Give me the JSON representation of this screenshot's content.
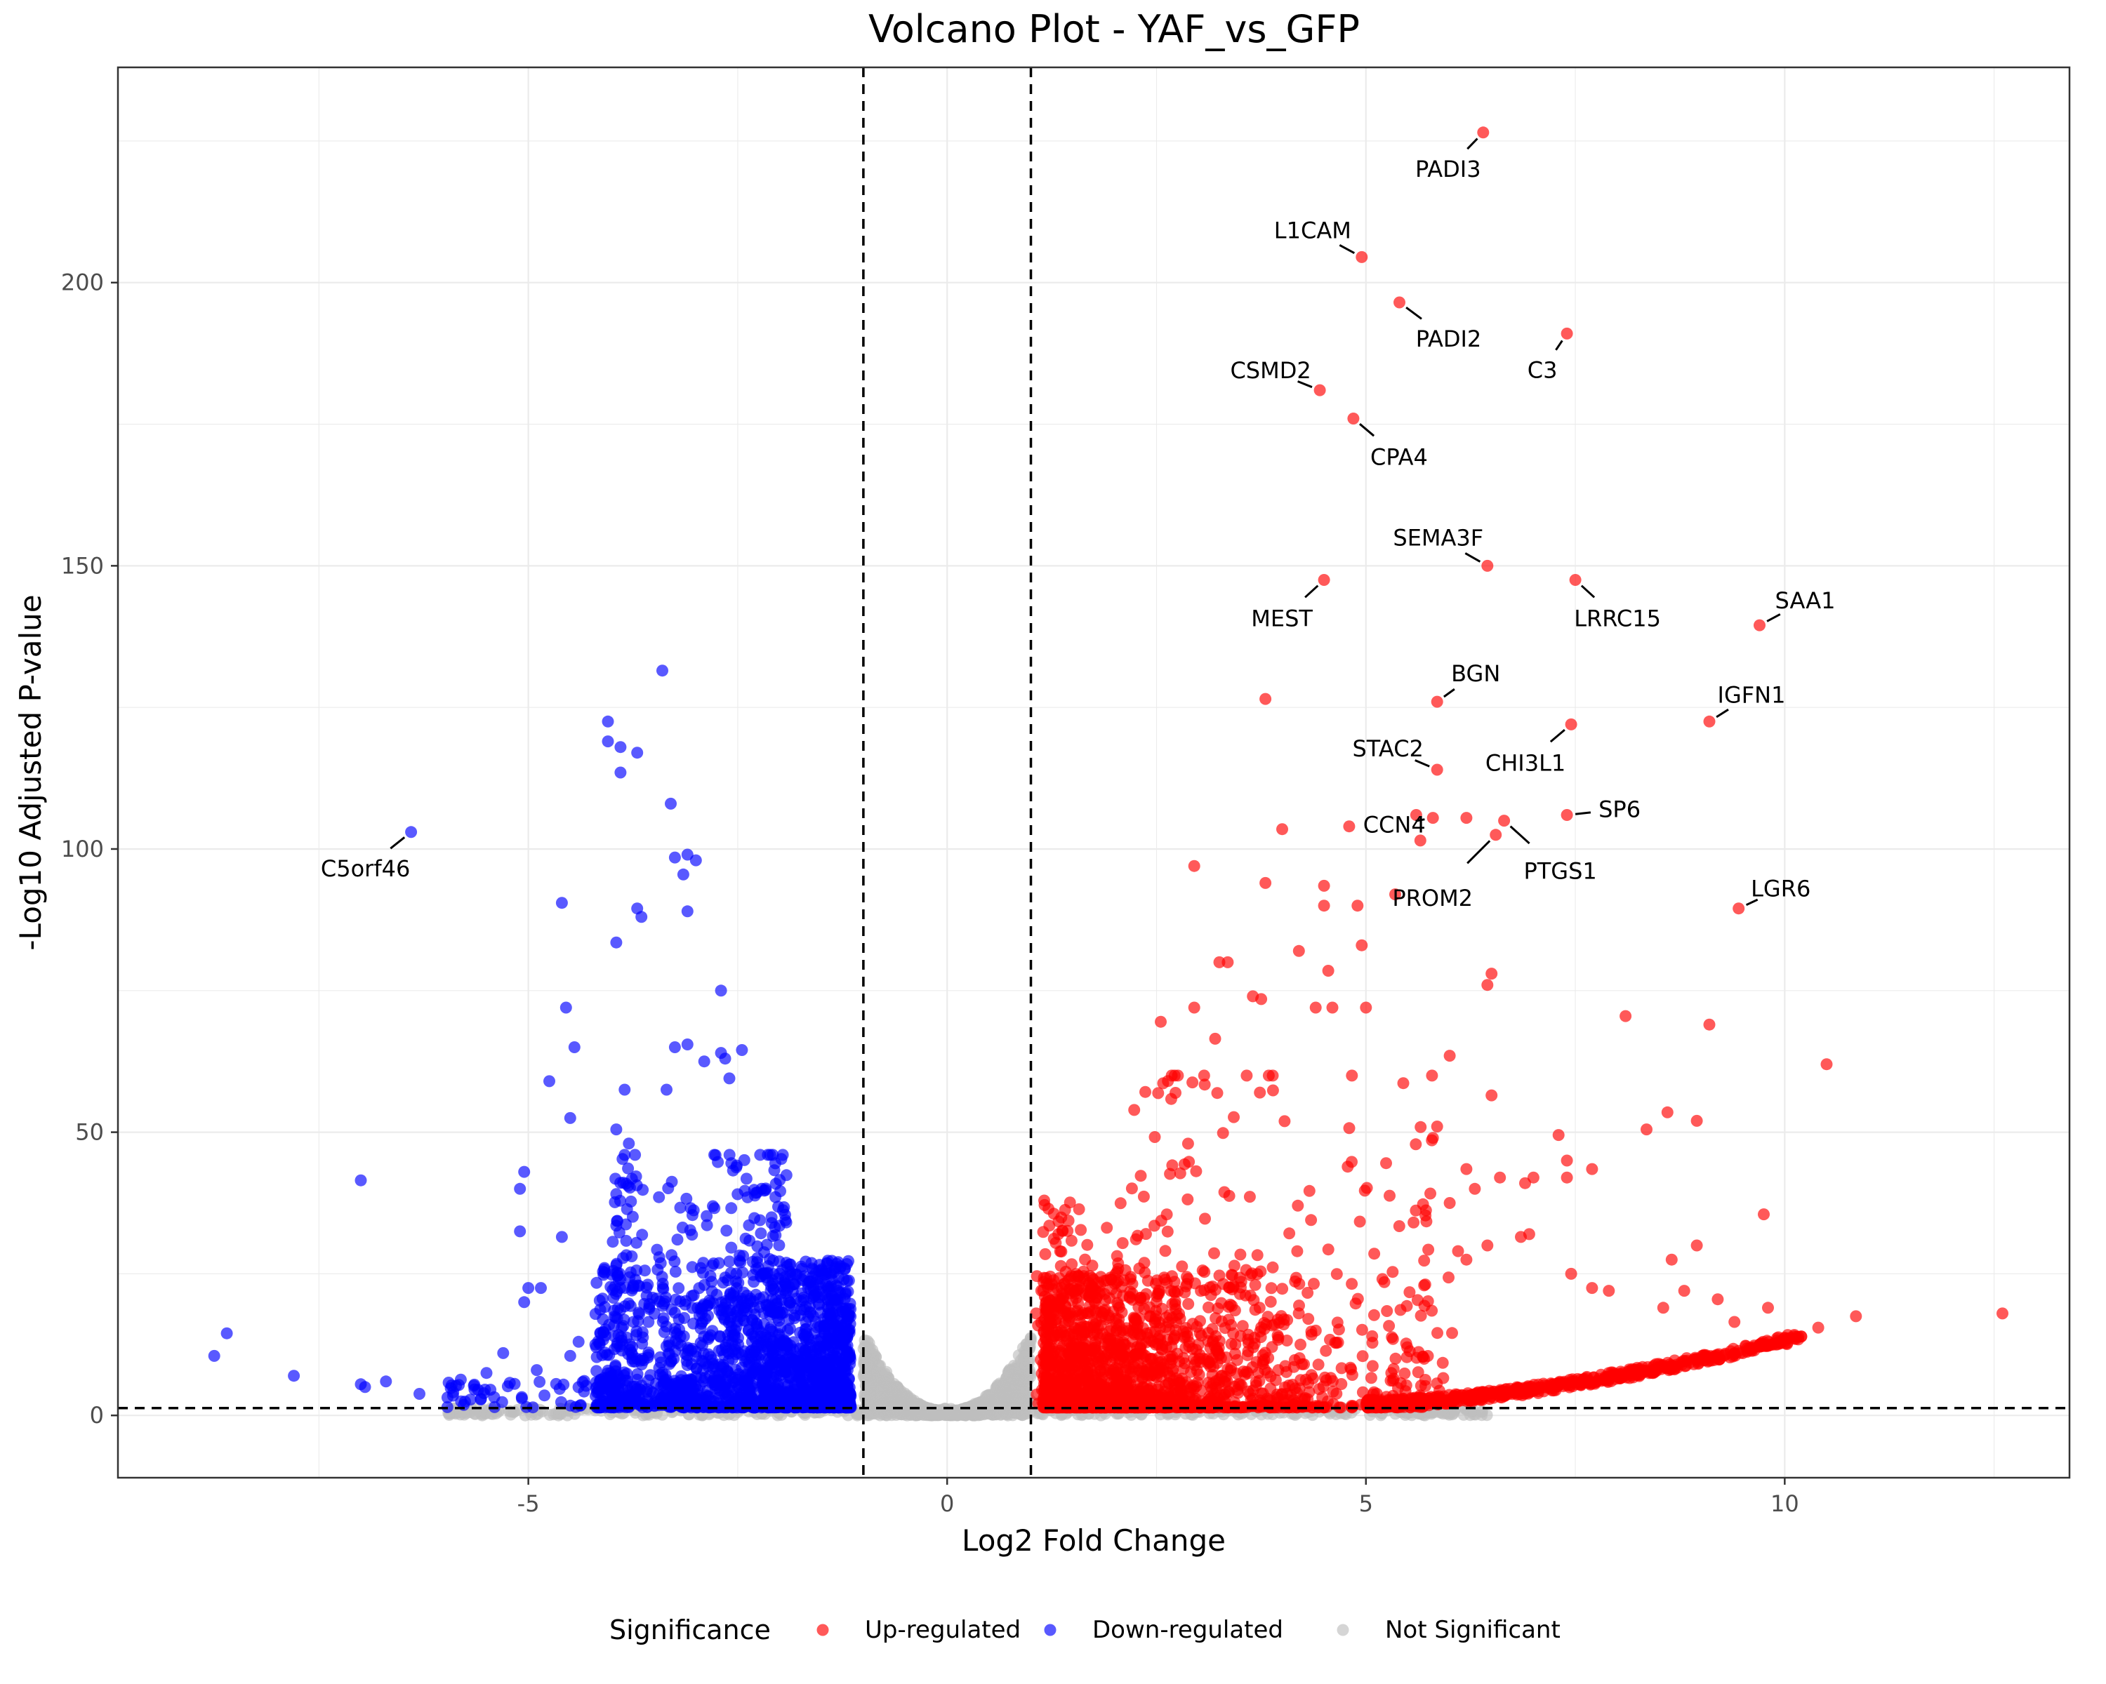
{
  "chart_data": {
    "type": "scatter",
    "title": "Volcano Plot - YAF_vs_GFP",
    "xlabel": "Log2 Fold Change",
    "ylabel": "-Log10 Adjusted P-value",
    "xlim": [
      -9.9,
      13.4
    ],
    "ylim": [
      -11,
      238
    ],
    "x_ticks": [
      -5,
      0,
      5,
      10
    ],
    "x_tick_labels": [
      "-5",
      "0",
      "5",
      "10"
    ],
    "y_ticks": [
      0,
      50,
      100,
      150,
      200
    ],
    "y_tick_labels": [
      "0",
      "50",
      "100",
      "150",
      "200"
    ],
    "grid": true,
    "thresholds": {
      "log2fc": [
        -1,
        1
      ],
      "neg_log10_padj": 1.3
    },
    "legend": {
      "title": "Significance",
      "position": "bottom",
      "entries": [
        {
          "label": "Up-regulated",
          "color": "#ff0000"
        },
        {
          "label": "Down-regulated",
          "color": "#0000ff"
        },
        {
          "label": "Not Significant",
          "color": "#bebebe"
        }
      ]
    },
    "labeled_genes": [
      {
        "label": "PADI3",
        "x": 6.4,
        "y": 226.5,
        "dir": "up"
      },
      {
        "label": "L1CAM",
        "x": 4.95,
        "y": 204.5,
        "dir": "up"
      },
      {
        "label": "PADI2",
        "x": 5.4,
        "y": 196.5,
        "dir": "up"
      },
      {
        "label": "C3",
        "x": 7.4,
        "y": 191,
        "dir": "up"
      },
      {
        "label": "CSMD2",
        "x": 4.45,
        "y": 181,
        "dir": "up"
      },
      {
        "label": "CPA4",
        "x": 4.85,
        "y": 176,
        "dir": "up"
      },
      {
        "label": "SEMA3F",
        "x": 6.45,
        "y": 150,
        "dir": "up"
      },
      {
        "label": "MEST",
        "x": 4.5,
        "y": 147.5,
        "dir": "up"
      },
      {
        "label": "LRRC15",
        "x": 7.5,
        "y": 147.5,
        "dir": "up"
      },
      {
        "label": "SAA1",
        "x": 9.7,
        "y": 139.5,
        "dir": "up"
      },
      {
        "label": "BGN",
        "x": 5.85,
        "y": 126,
        "dir": "up"
      },
      {
        "label": "IGFN1",
        "x": 9.1,
        "y": 122.5,
        "dir": "up"
      },
      {
        "label": "CHI3L1",
        "x": 7.45,
        "y": 122,
        "dir": "up"
      },
      {
        "label": "STAC2",
        "x": 5.85,
        "y": 114,
        "dir": "up"
      },
      {
        "label": "SP6",
        "x": 7.4,
        "y": 106,
        "dir": "up"
      },
      {
        "label": "PTGS1",
        "x": 6.65,
        "y": 105,
        "dir": "up"
      },
      {
        "label": "CCN4",
        "x": 5.8,
        "y": 105.5,
        "dir": "up"
      },
      {
        "label": "PROM2",
        "x": 6.55,
        "y": 102.5,
        "dir": "up"
      },
      {
        "label": "LGR6",
        "x": 9.45,
        "y": 89.5,
        "dir": "up"
      },
      {
        "label": "C5orf46",
        "x": -6.4,
        "y": 103,
        "dir": "down"
      }
    ],
    "highlighted_up": [
      [
        3.8,
        126.5
      ],
      [
        4.0,
        103.5
      ],
      [
        4.8,
        104.0
      ],
      [
        5.6,
        106.0
      ],
      [
        5.65,
        101.5
      ],
      [
        6.2,
        105.5
      ],
      [
        2.95,
        97.0
      ],
      [
        3.8,
        94.0
      ],
      [
        4.5,
        93.5
      ],
      [
        4.5,
        90.0
      ],
      [
        4.9,
        90.0
      ],
      [
        5.35,
        92.0
      ],
      [
        4.95,
        83.0
      ],
      [
        4.2,
        82.0
      ],
      [
        4.55,
        78.5
      ],
      [
        3.35,
        80.0
      ],
      [
        3.25,
        80.0
      ],
      [
        3.65,
        74.0
      ],
      [
        3.75,
        73.5
      ],
      [
        2.95,
        72.0
      ],
      [
        2.55,
        69.5
      ],
      [
        3.2,
        66.5
      ],
      [
        4.4,
        72.0
      ],
      [
        4.6,
        72.0
      ],
      [
        5.0,
        72.0
      ],
      [
        6.45,
        76.0
      ],
      [
        6.5,
        78.0
      ],
      [
        6.0,
        63.5
      ],
      [
        6.5,
        56.5
      ],
      [
        5.85,
        51.0
      ],
      [
        5.8,
        49.0
      ],
      [
        7.3,
        49.5
      ],
      [
        7.4,
        45.0
      ],
      [
        7.7,
        43.5
      ],
      [
        7.4,
        42.0
      ],
      [
        6.6,
        42.0
      ],
      [
        6.9,
        41.0
      ],
      [
        7.0,
        42.0
      ],
      [
        6.2,
        43.5
      ],
      [
        6.3,
        40.0
      ],
      [
        8.1,
        70.5
      ],
      [
        9.1,
        69.0
      ],
      [
        10.5,
        62.0
      ],
      [
        8.6,
        53.5
      ],
      [
        8.95,
        52.0
      ],
      [
        8.35,
        50.5
      ],
      [
        9.75,
        35.5
      ],
      [
        7.45,
        25.0
      ],
      [
        7.7,
        22.5
      ],
      [
        7.9,
        22.0
      ],
      [
        8.95,
        30.0
      ],
      [
        8.65,
        27.5
      ],
      [
        8.8,
        22.0
      ],
      [
        8.55,
        19.0
      ],
      [
        9.2,
        20.5
      ],
      [
        9.8,
        19.0
      ],
      [
        12.6,
        18.0
      ],
      [
        10.85,
        17.5
      ],
      [
        10.4,
        15.5
      ],
      [
        9.4,
        16.5
      ],
      [
        6.95,
        32.0
      ],
      [
        6.85,
        31.5
      ],
      [
        6.1,
        29.0
      ],
      [
        6.2,
        27.5
      ],
      [
        6.45,
        30.0
      ],
      [
        6.0,
        37.5
      ]
    ],
    "highlighted_down": [
      [
        -3.4,
        131.5
      ],
      [
        -4.05,
        122.5
      ],
      [
        -4.05,
        119.0
      ],
      [
        -3.9,
        118.0
      ],
      [
        -3.7,
        117.0
      ],
      [
        -3.9,
        113.5
      ],
      [
        -3.3,
        108.0
      ],
      [
        -3.1,
        99.0
      ],
      [
        -3.0,
        98.0
      ],
      [
        -3.25,
        98.5
      ],
      [
        -3.15,
        95.5
      ],
      [
        -4.6,
        90.5
      ],
      [
        -3.7,
        89.5
      ],
      [
        -3.65,
        88.0
      ],
      [
        -3.1,
        89.0
      ],
      [
        -3.95,
        83.5
      ],
      [
        -2.7,
        75.0
      ],
      [
        -4.55,
        72.0
      ],
      [
        -4.45,
        65.0
      ],
      [
        -3.25,
        65.0
      ],
      [
        -3.1,
        65.5
      ],
      [
        -2.9,
        62.5
      ],
      [
        -2.7,
        64.0
      ],
      [
        -2.45,
        64.5
      ],
      [
        -2.65,
        63.0
      ],
      [
        -2.6,
        59.5
      ],
      [
        -3.35,
        57.5
      ],
      [
        -3.85,
        57.5
      ],
      [
        -4.75,
        59.0
      ],
      [
        -4.5,
        52.5
      ],
      [
        -3.95,
        50.5
      ],
      [
        -3.8,
        48.0
      ],
      [
        -3.85,
        46.0
      ],
      [
        -5.05,
        43.0
      ],
      [
        -5.1,
        40.0
      ],
      [
        -5.1,
        32.5
      ],
      [
        -4.6,
        31.5
      ],
      [
        -3.95,
        33.5
      ],
      [
        -3.9,
        24.0
      ],
      [
        -5.0,
        22.5
      ],
      [
        -4.85,
        22.5
      ],
      [
        -5.05,
        20.0
      ],
      [
        -7.0,
        41.5
      ],
      [
        -8.6,
        14.5
      ],
      [
        -8.75,
        10.5
      ],
      [
        -7.8,
        7.0
      ],
      [
        -7.0,
        5.5
      ],
      [
        -6.95,
        5.0
      ],
      [
        -6.7,
        6.0
      ],
      [
        -5.5,
        7.5
      ],
      [
        -5.6,
        4.5
      ],
      [
        -5.9,
        3.5
      ],
      [
        -6.3,
        3.8
      ],
      [
        -5.3,
        11.0
      ],
      [
        -4.9,
        8.0
      ],
      [
        -4.5,
        10.5
      ],
      [
        -4.4,
        13.0
      ],
      [
        -4.2,
        12.5
      ]
    ],
    "clusters": [
      {
        "series": "Up-regulated",
        "n": 1700,
        "x_min": 1.0,
        "x_max": 7.5,
        "x_peak": 1.15,
        "x_decay": 1.4,
        "y_max": 24,
        "y_cap": 60,
        "y_pow": 3.0,
        "y_min": 1.4
      },
      {
        "series": "Up-regulated",
        "n": 260,
        "x_min": 1.0,
        "x_max": 4.0,
        "x_peak": 1.05,
        "x_decay": 0.9,
        "y_max": 36,
        "y_cap": 60,
        "y_pow": 2.0,
        "y_min": 2.0
      },
      {
        "series": "Up-regulated",
        "n": 140,
        "x_min": 2.0,
        "x_max": 5.8,
        "x_peak": 2.2,
        "x_decay": 2.0,
        "y_max": 56,
        "y_cap": 60,
        "y_pow": 1.6,
        "y_min": 10.0
      },
      {
        "series": "Down-regulated",
        "n": 1500,
        "x_min": -4.2,
        "x_max": -1.0,
        "x_peak": -1.15,
        "x_decay": 1.2,
        "y_max": 26,
        "y_cap": 46,
        "y_pow": 2.2,
        "y_min": 1.4
      },
      {
        "series": "Down-regulated",
        "n": 320,
        "x_min": -4.0,
        "x_max": -1.6,
        "x_peak": -1.9,
        "x_decay": 1.2,
        "y_max": 44,
        "y_cap": 46,
        "y_pow": 1.5,
        "y_min": 3.0
      },
      {
        "series": "Down-regulated",
        "n": 140,
        "x_min": -6.0,
        "x_max": -3.0,
        "x_peak": -3.0,
        "x_decay": 1.4,
        "y_max": 5,
        "y_cap": 10,
        "y_pow": 1.2,
        "y_min": 1.4
      }
    ],
    "trend_bands": [
      {
        "series": "Up-regulated",
        "n": 600,
        "x_min": 5.0,
        "x_max": 10.2,
        "y_at_min": 2.0,
        "y_at_max": 14.0,
        "curve": 1.6,
        "jitter": 0.8
      }
    ],
    "not_significant": [
      {
        "n": 1200,
        "x_min": -1.0,
        "x_max": 1.0,
        "y_scale": 14,
        "y_max": 14
      },
      {
        "n": 450,
        "x_min": -6.0,
        "x_max": 6.5,
        "y_scale": 1.2,
        "y_max": 1.3
      }
    ]
  }
}
